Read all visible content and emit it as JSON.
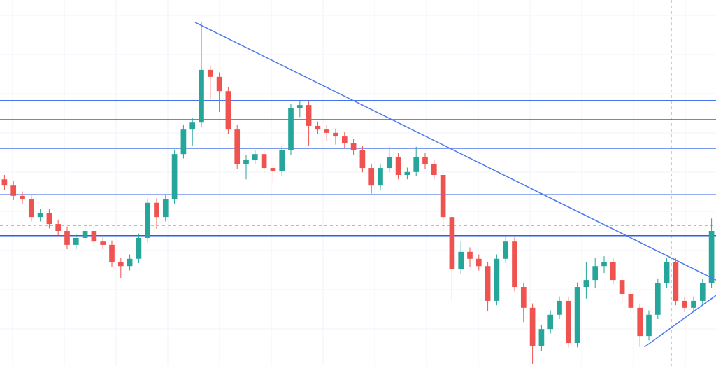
{
  "chart_data": {
    "type": "candlestick",
    "xlim": [
      -0.5,
      79.5
    ],
    "ylim": [
      0,
      100
    ],
    "grid": true,
    "up_color": "#26a69a",
    "down_color": "#ef5350",
    "open": [
      51.0,
      49.3,
      46.5,
      45.5,
      40.7,
      41.7,
      38.8,
      36.9,
      33.1,
      35.0,
      36.9,
      34.0,
      33.1,
      28.3,
      27.3,
      29.3,
      35.0,
      44.6,
      40.7,
      45.5,
      57.9,
      64.6,
      66.5,
      80.9,
      79.0,
      75.1,
      64.6,
      55.1,
      56.4,
      57.9,
      54.1,
      53.2,
      58.9,
      70.4,
      71.3,
      65.6,
      64.6,
      63.7,
      62.7,
      60.8,
      58.9,
      54.1,
      49.3,
      54.1,
      57.0,
      52.2,
      53.0,
      57.0,
      55.1,
      52.2,
      40.7,
      26.4,
      31.2,
      29.3,
      27.3,
      17.8,
      29.3,
      34.0,
      21.6,
      15.9,
      5.4,
      10.1,
      14.0,
      17.8,
      6.3,
      21.6,
      23.5,
      27.3,
      28.3,
      23.5,
      19.7,
      15.9,
      8.2,
      14.0,
      22.6,
      28.3,
      17.8,
      15.9,
      17.8,
      22.6
    ],
    "high": [
      52.2,
      50.5,
      47.7,
      46.7,
      42.9,
      42.9,
      40.0,
      38.1,
      36.2,
      38.1,
      38.1,
      35.2,
      34.3,
      29.5,
      30.5,
      36.2,
      45.8,
      45.8,
      46.7,
      59.1,
      65.8,
      67.7,
      93.9,
      82.1,
      80.2,
      76.3,
      65.8,
      57.6,
      59.1,
      59.1,
      55.3,
      60.1,
      71.6,
      72.5,
      72.5,
      66.8,
      65.8,
      64.9,
      63.9,
      62.0,
      60.1,
      55.3,
      55.3,
      59.9,
      58.2,
      54.2,
      59.9,
      58.2,
      56.3,
      53.4,
      41.9,
      34.0,
      32.4,
      30.5,
      28.5,
      30.5,
      35.6,
      35.2,
      22.8,
      17.1,
      11.3,
      15.2,
      19.0,
      19.0,
      22.8,
      28.3,
      29.5,
      30.0,
      29.5,
      24.7,
      20.9,
      17.1,
      15.2,
      23.8,
      29.5,
      29.5,
      19.0,
      19.0,
      23.8,
      40.3
    ],
    "low": [
      48.1,
      45.3,
      44.3,
      39.5,
      39.5,
      37.6,
      35.7,
      31.9,
      31.9,
      33.8,
      32.8,
      31.9,
      27.1,
      24.1,
      26.1,
      28.1,
      33.8,
      37.5,
      39.5,
      44.3,
      56.7,
      60.2,
      65.3,
      72.8,
      69.4,
      63.4,
      53.9,
      51.0,
      55.2,
      52.9,
      50.1,
      52.0,
      57.7,
      68.0,
      60.2,
      63.4,
      61.5,
      60.5,
      59.6,
      57.7,
      52.9,
      47.1,
      48.1,
      52.9,
      51.0,
      51.0,
      51.8,
      53.9,
      51.0,
      36.6,
      17.8,
      25.2,
      27.1,
      26.1,
      14.9,
      16.6,
      28.1,
      20.4,
      12.0,
      0.6,
      4.2,
      8.9,
      12.8,
      5.1,
      5.1,
      18.4,
      21.3,
      25.4,
      22.3,
      17.5,
      14.7,
      5.2,
      7.0,
      12.8,
      21.4,
      16.6,
      14.7,
      14.7,
      16.6,
      21.4
    ],
    "close": [
      49.3,
      46.5,
      45.5,
      40.7,
      41.7,
      38.8,
      36.9,
      33.1,
      35.0,
      36.9,
      34.0,
      33.1,
      28.3,
      27.3,
      29.3,
      35.0,
      44.6,
      40.7,
      45.5,
      57.9,
      64.6,
      66.5,
      80.9,
      79.0,
      75.1,
      64.6,
      55.1,
      56.4,
      57.9,
      54.1,
      53.2,
      58.9,
      70.4,
      71.3,
      65.6,
      64.6,
      63.7,
      62.7,
      60.8,
      58.9,
      54.1,
      49.3,
      54.1,
      57.0,
      52.2,
      53.0,
      57.0,
      55.1,
      52.2,
      40.7,
      26.4,
      31.2,
      29.3,
      27.3,
      17.8,
      29.3,
      34.0,
      21.6,
      15.9,
      5.4,
      10.1,
      14.0,
      17.8,
      6.3,
      21.6,
      23.5,
      27.3,
      28.3,
      23.5,
      19.7,
      15.9,
      8.2,
      14.0,
      22.6,
      28.3,
      17.8,
      15.9,
      17.8,
      22.6,
      36.9
    ],
    "levels": [
      72.5,
      67.3,
      59.5,
      46.8,
      35.6
    ],
    "level_color": "#2f5fe6",
    "trend_lines": [
      {
        "x": [
          21.3,
          79.5
        ],
        "y": [
          93.9,
          23.5
        ]
      },
      {
        "x": [
          71.5,
          79.5
        ],
        "y": [
          5.2,
          19.3
        ]
      }
    ],
    "trend_color": "#4a78ee",
    "crosshair": {
      "x": 74.5,
      "y": 38.4
    }
  }
}
